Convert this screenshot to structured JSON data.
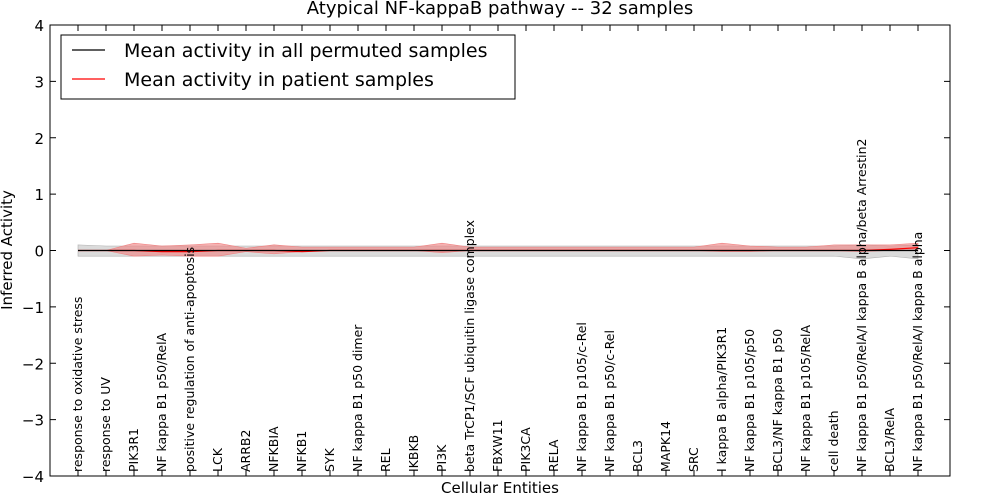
{
  "chart_data": {
    "type": "line",
    "title": "Atypical NF-kappaB pathway -- 32 samples",
    "xlabel": "Cellular Entities",
    "ylabel": "Inferred Activity",
    "ylim": [
      -4,
      4
    ],
    "yticks": [
      -4,
      -3,
      -2,
      -1,
      0,
      1,
      2,
      3,
      4
    ],
    "ytick_labels": [
      "−4",
      "−3",
      "−2",
      "−1",
      "0",
      "1",
      "2",
      "3",
      "4"
    ],
    "grid": false,
    "legend_position": "top-left",
    "categories": [
      "response to oxidative stress",
      "response to UV",
      "PIK3R1",
      "NF kappa B1 p50/RelA",
      "positive regulation of anti-apoptosis",
      "LCK",
      "ARRB2",
      "NFKBIA",
      "NFKB1",
      "SYK",
      "NF kappa B1 p50 dimer",
      "REL",
      "IKBKB",
      "PI3K",
      "beta TrCP1/SCF ubiquitin ligase complex",
      "FBXW11",
      "PIK3CA",
      "RELA",
      "NF kappa B1 p105/c-Rel",
      "NF kappa B1 p50/c-Rel",
      "BCL3",
      "MAPK14",
      "SRC",
      "I kappa B alpha/PIK3R1",
      "NF kappa B1 p105/p50",
      "BCL3/NF kappa B1 p50",
      "NF kappa B1 p105/RelA",
      "cell death",
      "NF kappa B1 p50/RelA/I kappa B alpha/beta Arrestin2",
      "BCL3/RelA",
      "NF kappa B1 p50/RelA/I kappa B alpha"
    ],
    "series": [
      {
        "name": "Mean activity in all permuted samples",
        "color": "#000000",
        "band_color": "#b0b0b0",
        "values": [
          0.0,
          0.0,
          0.0,
          0.0,
          0.0,
          0.0,
          0.0,
          0.0,
          0.0,
          0.0,
          0.0,
          0.0,
          0.0,
          0.0,
          0.0,
          0.0,
          0.0,
          0.0,
          0.0,
          0.0,
          0.0,
          0.0,
          0.0,
          0.0,
          0.0,
          0.0,
          0.0,
          0.0,
          0.0,
          0.0,
          0.0
        ],
        "band_lower": [
          -0.1,
          -0.1,
          -0.1,
          -0.1,
          -0.1,
          -0.1,
          -0.1,
          -0.1,
          -0.1,
          -0.1,
          -0.1,
          -0.1,
          -0.1,
          -0.1,
          -0.1,
          -0.1,
          -0.1,
          -0.1,
          -0.1,
          -0.1,
          -0.1,
          -0.1,
          -0.1,
          -0.1,
          -0.1,
          -0.1,
          -0.1,
          -0.1,
          -0.15,
          -0.1,
          -0.15
        ],
        "band_upper": [
          0.1,
          0.08,
          0.08,
          0.08,
          0.08,
          0.08,
          0.08,
          0.08,
          0.08,
          0.08,
          0.08,
          0.08,
          0.08,
          0.08,
          0.08,
          0.08,
          0.08,
          0.08,
          0.08,
          0.08,
          0.08,
          0.08,
          0.08,
          0.08,
          0.08,
          0.08,
          0.08,
          0.08,
          0.1,
          0.08,
          0.1
        ]
      },
      {
        "name": "Mean activity in patient samples",
        "color": "#ff0000",
        "band_color": "#f08080",
        "values": [
          0.0,
          0.0,
          0.0,
          -0.02,
          -0.02,
          0.0,
          0.0,
          0.0,
          -0.02,
          0.0,
          0.0,
          0.0,
          0.0,
          0.0,
          0.0,
          0.0,
          0.0,
          0.0,
          0.0,
          0.0,
          0.0,
          0.0,
          0.0,
          0.0,
          0.0,
          0.0,
          0.0,
          0.0,
          0.0,
          0.02,
          0.05
        ],
        "band_lower": [
          0.0,
          0.0,
          -0.1,
          -0.08,
          -0.1,
          -0.1,
          -0.02,
          -0.06,
          -0.02,
          0.0,
          0.0,
          0.0,
          0.0,
          -0.04,
          0.0,
          0.0,
          0.0,
          0.0,
          0.0,
          0.0,
          0.0,
          0.0,
          0.0,
          -0.02,
          -0.02,
          0.0,
          0.0,
          0.0,
          -0.02,
          0.0,
          0.0
        ],
        "band_upper": [
          0.0,
          0.0,
          0.13,
          0.08,
          0.1,
          0.13,
          0.04,
          0.1,
          0.06,
          0.06,
          0.06,
          0.06,
          0.06,
          0.13,
          0.06,
          0.06,
          0.06,
          0.06,
          0.06,
          0.06,
          0.06,
          0.06,
          0.06,
          0.13,
          0.08,
          0.06,
          0.06,
          0.1,
          0.1,
          0.1,
          0.13
        ]
      }
    ]
  }
}
